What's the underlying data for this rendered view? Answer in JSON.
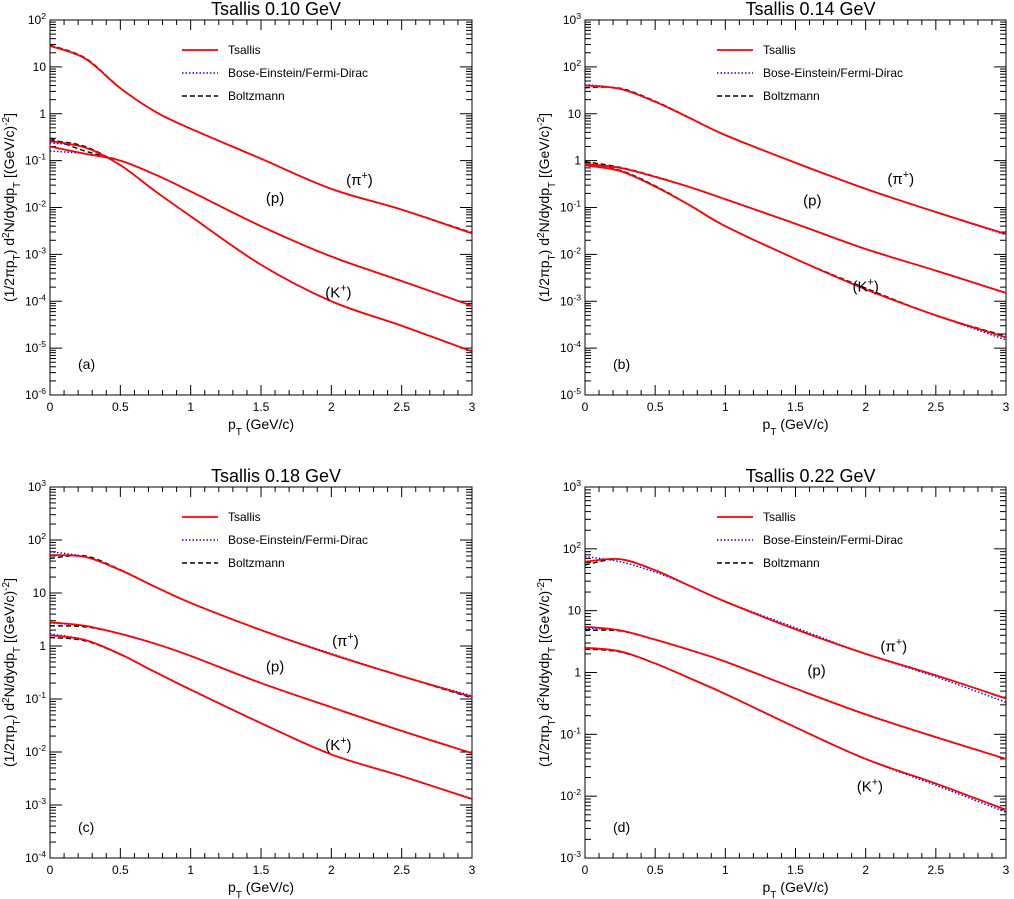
{
  "colors": {
    "tsallis": "#ff0000",
    "bose_einstein_fermi_dirac": "#0000ff",
    "boltzmann": "#000000",
    "axis": "#000000"
  },
  "chart_data": [
    {
      "type": "line",
      "panel_label": "(a)",
      "title": "Tsallis 0.10 GeV",
      "xlabel": "p_T (GeV/c)",
      "ylabel": "(1/2πp_T) d²N/dydp_T [(GeV/c)⁻²]",
      "y_scale": "log",
      "xlim": [
        0,
        3
      ],
      "ylim_exp": [
        -6,
        2
      ],
      "x_ticks": [
        "0",
        "0.5",
        "1",
        "1.5",
        "2",
        "2.5",
        "3"
      ],
      "legend": {
        "placement": "top-center",
        "entries": [
          "Tsallis",
          "Bose-Einstein/Fermi-Dirac",
          "Boltzmann"
        ]
      },
      "annotations": [
        {
          "text": "(π⁺)",
          "x": 2.2,
          "y": 0.03
        },
        {
          "text": "(p)",
          "x": 1.6,
          "y": 0.0125
        },
        {
          "text": "(K⁺)",
          "x": 2.05,
          "y": 0.00012
        }
      ],
      "x": [
        0,
        0.25,
        0.5,
        0.75,
        1,
        1.5,
        2,
        2.5,
        3
      ],
      "series": [
        {
          "particle": "π+",
          "Tsallis": [
            28,
            15,
            3.5,
            1.1,
            0.48,
            0.11,
            0.025,
            0.009,
            0.0028
          ],
          "BEFD": [
            28,
            15,
            3.5,
            1.1,
            0.48,
            0.11,
            0.025,
            0.009,
            0.0028
          ],
          "Boltzmann": [
            29,
            15.5,
            3.55,
            1.1,
            0.48,
            0.11,
            0.025,
            0.009,
            0.0029
          ]
        },
        {
          "particle": "p",
          "Tsallis": [
            0.2,
            0.14,
            0.1,
            0.05,
            0.022,
            0.004,
            0.0009,
            0.00027,
            8e-05
          ],
          "BEFD": [
            0.16,
            0.14,
            0.1,
            0.05,
            0.022,
            0.004,
            0.0009,
            0.00027,
            8e-05
          ],
          "Boltzmann": [
            0.3,
            0.16,
            0.1,
            0.05,
            0.022,
            0.004,
            0.0009,
            0.00027,
            8e-05
          ]
        },
        {
          "particle": "K+",
          "Tsallis": [
            0.26,
            0.19,
            0.08,
            0.022,
            0.0065,
            0.0006,
            0.0001,
            3e-05,
            8.5e-06
          ],
          "BEFD": [
            0.24,
            0.19,
            0.08,
            0.022,
            0.0065,
            0.0006,
            0.0001,
            3e-05,
            8.5e-06
          ],
          "Boltzmann": [
            0.27,
            0.2,
            0.08,
            0.022,
            0.0065,
            0.0006,
            0.0001,
            3e-05,
            8.5e-06
          ]
        }
      ]
    },
    {
      "type": "line",
      "panel_label": "(b)",
      "title": "Tsallis 0.14 GeV",
      "xlabel": "p_T (GeV/c)",
      "ylabel": "(1/2πp_T) d²N/dydp_T [(GeV/c)⁻²]",
      "y_scale": "log",
      "xlim": [
        0,
        3
      ],
      "ylim_exp": [
        -5,
        3
      ],
      "x_ticks": [
        "0",
        "0.5",
        "1",
        "1.5",
        "2",
        "2.5",
        "3"
      ],
      "legend": {
        "placement": "top-center",
        "entries": [
          "Tsallis",
          "Bose-Einstein/Fermi-Dirac",
          "Boltzmann"
        ]
      },
      "annotations": [
        {
          "text": "(π⁺)",
          "x": 2.25,
          "y": 0.32
        },
        {
          "text": "(p)",
          "x": 1.62,
          "y": 0.11
        },
        {
          "text": "(K⁺)",
          "x": 2.0,
          "y": 0.0016
        }
      ],
      "x": [
        0,
        0.25,
        0.5,
        0.75,
        1,
        1.5,
        2,
        2.5,
        3
      ],
      "series": [
        {
          "particle": "π+",
          "Tsallis": [
            40,
            34,
            18,
            8,
            3.5,
            0.9,
            0.25,
            0.08,
            0.027
          ],
          "BEFD": [
            42,
            34,
            18,
            8,
            3.5,
            0.9,
            0.25,
            0.08,
            0.026
          ],
          "Boltzmann": [
            36,
            35,
            18.5,
            8.1,
            3.5,
            0.9,
            0.25,
            0.08,
            0.027
          ]
        },
        {
          "particle": "p",
          "Tsallis": [
            0.85,
            0.7,
            0.45,
            0.27,
            0.15,
            0.045,
            0.013,
            0.0045,
            0.0015
          ],
          "BEFD": [
            0.8,
            0.7,
            0.45,
            0.27,
            0.15,
            0.045,
            0.013,
            0.0045,
            0.0015
          ],
          "Boltzmann": [
            0.95,
            0.72,
            0.46,
            0.27,
            0.15,
            0.045,
            0.013,
            0.0045,
            0.0015
          ]
        },
        {
          "particle": "K+",
          "Tsallis": [
            0.8,
            0.6,
            0.28,
            0.11,
            0.04,
            0.008,
            0.0018,
            0.0005,
            0.00017
          ],
          "BEFD": [
            0.78,
            0.6,
            0.28,
            0.11,
            0.04,
            0.008,
            0.0018,
            0.0005,
            0.00015
          ],
          "Boltzmann": [
            0.82,
            0.62,
            0.29,
            0.11,
            0.04,
            0.008,
            0.0019,
            0.0005,
            0.00018
          ]
        }
      ]
    },
    {
      "type": "line",
      "panel_label": "(c)",
      "title": "Tsallis 0.18 GeV",
      "xlabel": "p_T (GeV/c)",
      "ylabel": "(1/2πp_T) d²N/dydp_T [(GeV/c)⁻²]",
      "y_scale": "log",
      "xlim": [
        0,
        3
      ],
      "ylim_exp": [
        -4,
        3
      ],
      "x_ticks": [
        "0",
        "0.5",
        "1",
        "1.5",
        "2",
        "2.5",
        "3"
      ],
      "legend": {
        "placement": "top-center",
        "entries": [
          "Tsallis",
          "Bose-Einstein/Fermi-Dirac",
          "Boltzmann"
        ]
      },
      "annotations": [
        {
          "text": "(π⁺)",
          "x": 2.1,
          "y": 1.0
        },
        {
          "text": "(p)",
          "x": 1.6,
          "y": 0.33
        },
        {
          "text": "(K⁺)",
          "x": 2.05,
          "y": 0.011
        }
      ],
      "x": [
        0,
        0.25,
        0.5,
        0.75,
        1,
        1.5,
        2,
        2.5,
        3
      ],
      "series": [
        {
          "particle": "π+",
          "Tsallis": [
            52,
            48,
            27,
            13,
            6.5,
            2.0,
            0.7,
            0.27,
            0.11
          ],
          "BEFD": [
            60,
            48,
            27,
            13,
            6.5,
            2.0,
            0.72,
            0.27,
            0.115
          ],
          "Boltzmann": [
            45,
            50,
            27.5,
            13,
            6.5,
            2.0,
            0.7,
            0.27,
            0.105
          ]
        },
        {
          "particle": "p",
          "Tsallis": [
            2.8,
            2.4,
            1.7,
            1.1,
            0.65,
            0.2,
            0.07,
            0.025,
            0.0095
          ],
          "BEFD": [
            2.7,
            2.4,
            1.7,
            1.1,
            0.65,
            0.2,
            0.07,
            0.025,
            0.0095
          ],
          "Boltzmann": [
            2.4,
            2.3,
            1.7,
            1.1,
            0.65,
            0.2,
            0.07,
            0.025,
            0.0095
          ]
        },
        {
          "particle": "K+",
          "Tsallis": [
            1.6,
            1.3,
            0.7,
            0.32,
            0.15,
            0.035,
            0.009,
            0.0035,
            0.0013
          ],
          "BEFD": [
            1.7,
            1.3,
            0.7,
            0.32,
            0.15,
            0.035,
            0.009,
            0.0035,
            0.0013
          ],
          "Boltzmann": [
            1.45,
            1.25,
            0.69,
            0.32,
            0.15,
            0.035,
            0.009,
            0.0035,
            0.0013
          ]
        }
      ]
    },
    {
      "type": "line",
      "panel_label": "(d)",
      "title": "Tsallis 0.22 GeV",
      "xlabel": "p_T (GeV/c)",
      "ylabel": "(1/2πp_T) d²N/dydp_T [(GeV/c)⁻²]",
      "y_scale": "log",
      "xlim": [
        0,
        3
      ],
      "ylim_exp": [
        -3,
        3
      ],
      "x_ticks": [
        "0",
        "0.5",
        "1",
        "1.5",
        "2",
        "2.5",
        "3"
      ],
      "legend": {
        "placement": "top-center",
        "entries": [
          "Tsallis",
          "Bose-Einstein/Fermi-Dirac",
          "Boltzmann"
        ]
      },
      "annotations": [
        {
          "text": "(π⁺)",
          "x": 2.2,
          "y": 2.2
        },
        {
          "text": "(p)",
          "x": 1.65,
          "y": 0.9
        },
        {
          "text": "(K⁺)",
          "x": 2.03,
          "y": 0.012
        }
      ],
      "x": [
        0,
        0.25,
        0.5,
        0.75,
        1,
        1.5,
        2,
        2.5,
        3
      ],
      "series": [
        {
          "particle": "π+",
          "Tsallis": [
            62,
            68,
            45,
            25,
            14,
            5.0,
            2.0,
            0.9,
            0.38
          ],
          "BEFD": [
            75,
            62,
            42,
            25,
            14,
            5.3,
            2.0,
            0.85,
            0.33
          ],
          "Boltzmann": [
            55,
            68,
            45,
            25,
            14,
            5.0,
            2.0,
            0.9,
            0.38
          ]
        },
        {
          "particle": "p",
          "Tsallis": [
            5.5,
            4.8,
            3.4,
            2.3,
            1.5,
            0.55,
            0.21,
            0.09,
            0.04
          ],
          "BEFD": [
            5.2,
            4.8,
            3.4,
            2.3,
            1.5,
            0.55,
            0.21,
            0.09,
            0.04
          ],
          "Boltzmann": [
            4.8,
            4.7,
            3.4,
            2.3,
            1.5,
            0.55,
            0.21,
            0.09,
            0.04
          ]
        },
        {
          "particle": "K+",
          "Tsallis": [
            2.5,
            2.2,
            1.4,
            0.8,
            0.45,
            0.13,
            0.04,
            0.016,
            0.006
          ],
          "BEFD": [
            2.55,
            2.2,
            1.4,
            0.8,
            0.45,
            0.13,
            0.04,
            0.015,
            0.0055
          ],
          "Boltzmann": [
            2.4,
            2.15,
            1.4,
            0.8,
            0.45,
            0.13,
            0.04,
            0.016,
            0.006
          ]
        }
      ]
    }
  ]
}
